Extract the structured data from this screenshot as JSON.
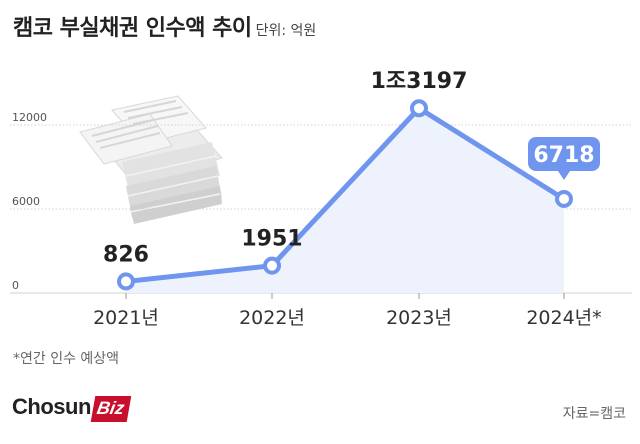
{
  "header": {
    "title": "캠코 부실채권 인수액 추이",
    "unit": "단위: 억원"
  },
  "footnote": "*연간 인수 예상액",
  "brand": {
    "part1": "Chosun",
    "part2": "Biz"
  },
  "source": "자료=캠코",
  "colors": {
    "line": "#6f95ee",
    "area": "#eef2fd",
    "callout": "#6f95ee",
    "grid": "#d0d0d0",
    "brand": "#c8102e"
  },
  "icons": [
    "paper-stack-illustration"
  ],
  "chart_data": {
    "type": "line",
    "categories": [
      "2021년",
      "2022년",
      "2023년",
      "2024년*"
    ],
    "values": [
      826,
      1951,
      13197,
      6718
    ],
    "data_labels": [
      "826",
      "1951",
      "1조3197",
      "6718"
    ],
    "highlight_index": 3,
    "yticks": [
      "0",
      "6000",
      "12000"
    ],
    "ylim": [
      0,
      12000
    ],
    "grid": true,
    "area_fill": true
  }
}
